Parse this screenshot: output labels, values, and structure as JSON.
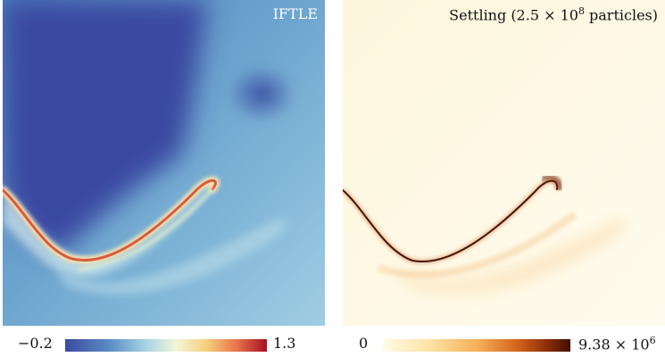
{
  "panels": {
    "left": {
      "title": "IFTLE"
    },
    "right": {
      "title_prefix": "Settling (2.5 × 10",
      "title_sup": "8",
      "title_suffix": " particles)"
    }
  },
  "colorbars": {
    "left": {
      "min_label": "−0.2",
      "max_label": "1.3",
      "colormap": "blue-white-red"
    },
    "right": {
      "min_label": "0",
      "max_label_base": "9.38 × 10",
      "max_label_sup": "6",
      "colormap": "white-orange-brown"
    }
  }
}
